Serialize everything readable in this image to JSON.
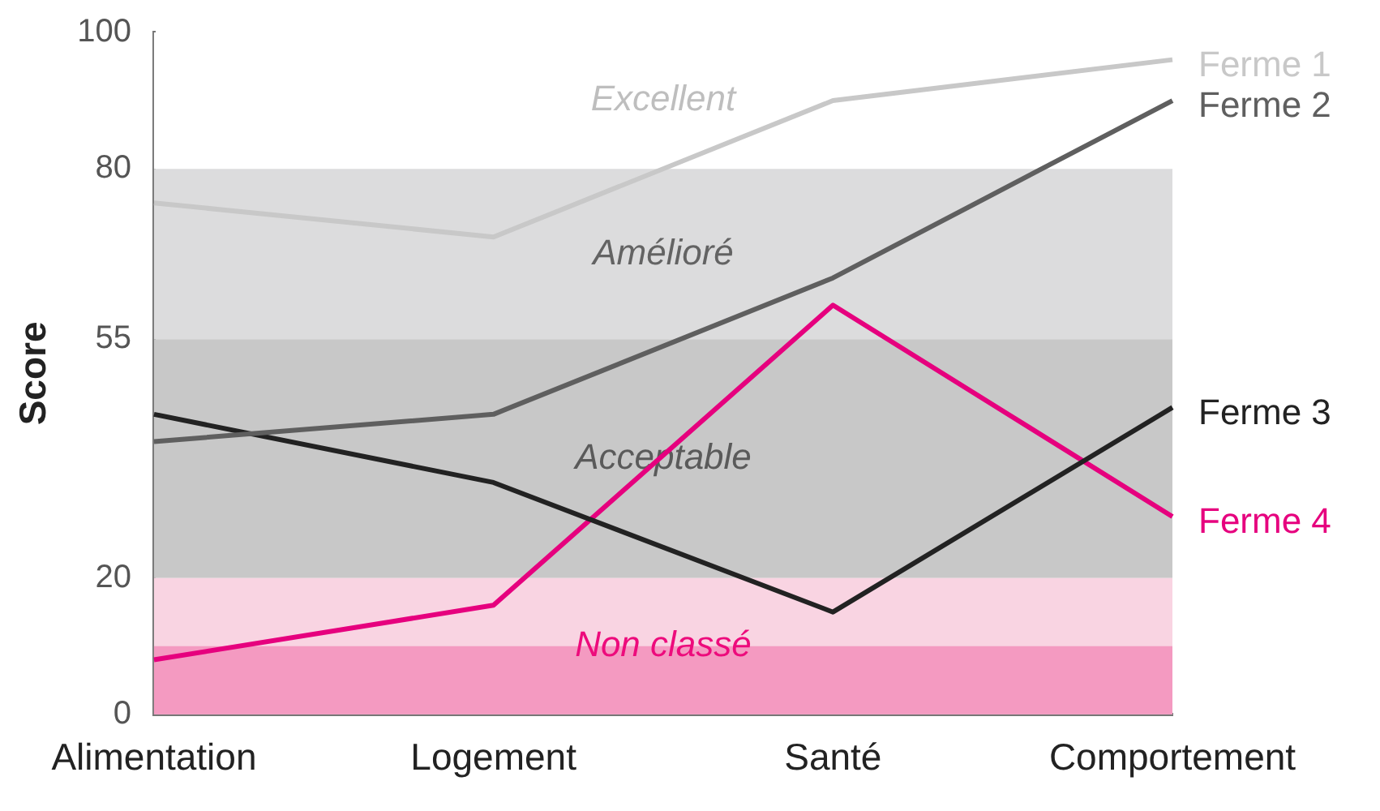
{
  "chart_data": {
    "type": "line",
    "ylabel": "Score",
    "categories": [
      "Alimentation",
      "Logement",
      "Santé",
      "Comportement"
    ],
    "series": [
      {
        "name": "Ferme 1",
        "color": "#c8c8c8",
        "values": [
          75,
          70,
          90,
          96
        ]
      },
      {
        "name": "Ferme 2",
        "color": "#5f5f5f",
        "values": [
          40,
          44,
          64,
          90
        ]
      },
      {
        "name": "Ferme 3",
        "color": "#222222",
        "values": [
          44,
          34,
          15,
          45
        ]
      },
      {
        "name": "Ferme 4",
        "color": "#e6007e",
        "values": [
          8,
          16,
          60,
          29
        ]
      }
    ],
    "ylim": [
      0,
      100
    ],
    "yticks": [
      0,
      20,
      55,
      80,
      100
    ],
    "bands": [
      {
        "axis": "y",
        "from": 80,
        "to": 100,
        "label": "Excellent",
        "color": "#ffffff"
      },
      {
        "axis": "y",
        "from": 55,
        "to": 80,
        "label": "Amélioré",
        "color": "#dcdcdd"
      },
      {
        "axis": "y",
        "from": 20,
        "to": 55,
        "label": "Acceptable",
        "color": "#c8c8c8"
      },
      {
        "axis": "y",
        "from": 0,
        "to": 20,
        "label": "Non classé",
        "color": "#f9d4e2"
      },
      {
        "axis": "y",
        "from": 0,
        "to": 10,
        "color": "#f49ac1"
      }
    ],
    "grid": false,
    "legend": "right",
    "marker": "none",
    "line_style": "solid"
  }
}
